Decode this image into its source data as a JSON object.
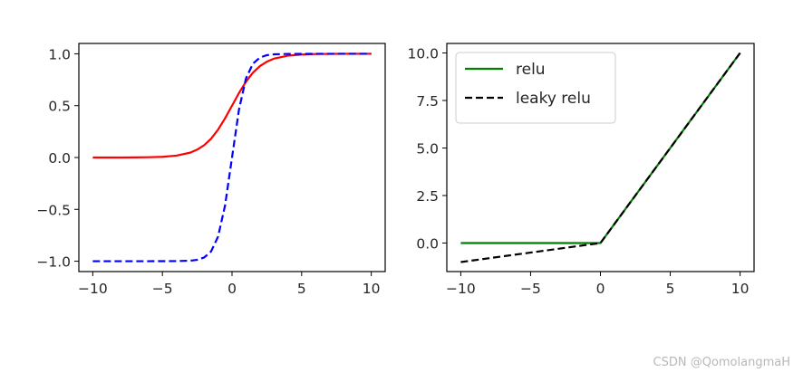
{
  "watermark": "CSDN @QomolangmaH",
  "chart_data": [
    {
      "type": "line",
      "title": "",
      "xlabel": "",
      "ylabel": "",
      "xlim": [
        -11,
        11
      ],
      "ylim": [
        -1.1,
        1.1
      ],
      "x_ticks": [
        -10,
        -5,
        0,
        5,
        10
      ],
      "x_tick_labels": [
        "−10",
        "−5",
        "0",
        "5",
        "10"
      ],
      "y_ticks": [
        -1.0,
        -0.5,
        0.0,
        0.5,
        1.0
      ],
      "y_tick_labels": [
        "−1.0",
        "−0.5",
        "0.0",
        "0.5",
        "1.0"
      ],
      "grid": false,
      "legend": null,
      "series": [
        {
          "color": "#ff0000",
          "dash": "solid",
          "x": [
            -10,
            -9,
            -8,
            -7,
            -6,
            -5,
            -4,
            -3,
            -2.5,
            -2,
            -1.5,
            -1,
            -0.5,
            0,
            0.5,
            1,
            1.5,
            2,
            2.5,
            3,
            4,
            5,
            6,
            7,
            8,
            9,
            10
          ],
          "y": [
            0.0,
            0.0001,
            0.0003,
            0.0009,
            0.0025,
            0.0067,
            0.018,
            0.047,
            0.076,
            0.119,
            0.182,
            0.269,
            0.378,
            0.5,
            0.622,
            0.731,
            0.818,
            0.881,
            0.924,
            0.953,
            0.982,
            0.993,
            0.998,
            0.999,
            1.0,
            1.0,
            1.0
          ]
        },
        {
          "color": "#0000ff",
          "dash": "dashed",
          "x": [
            -10,
            -8,
            -6,
            -4,
            -3,
            -2.5,
            -2,
            -1.5,
            -1,
            -0.5,
            0,
            0.5,
            1,
            1.5,
            2,
            2.5,
            3,
            4,
            6,
            8,
            10
          ],
          "y": [
            -1.0,
            -1.0,
            -1.0,
            -0.999,
            -0.995,
            -0.987,
            -0.964,
            -0.905,
            -0.762,
            -0.462,
            0.0,
            0.462,
            0.762,
            0.905,
            0.964,
            0.987,
            0.995,
            0.999,
            1.0,
            1.0,
            1.0
          ]
        }
      ]
    },
    {
      "type": "line",
      "title": "",
      "xlabel": "",
      "ylabel": "",
      "xlim": [
        -11,
        11
      ],
      "ylim": [
        -1.5,
        10.5
      ],
      "x_ticks": [
        -10,
        -5,
        0,
        5,
        10
      ],
      "x_tick_labels": [
        "−10",
        "−5",
        "0",
        "5",
        "10"
      ],
      "y_ticks": [
        0.0,
        2.5,
        5.0,
        7.5,
        10.0
      ],
      "y_tick_labels": [
        "0.0",
        "2.5",
        "5.0",
        "7.5",
        "10.0"
      ],
      "grid": false,
      "legend": "top-left",
      "series": [
        {
          "name": "relu",
          "color": "#008000",
          "dash": "solid",
          "x": [
            -10,
            0,
            10
          ],
          "y": [
            0,
            0,
            10
          ]
        },
        {
          "name": "leaky relu",
          "color": "#000000",
          "dash": "dashed",
          "x": [
            -10,
            0,
            10
          ],
          "y": [
            -1,
            0,
            10
          ]
        }
      ]
    }
  ]
}
